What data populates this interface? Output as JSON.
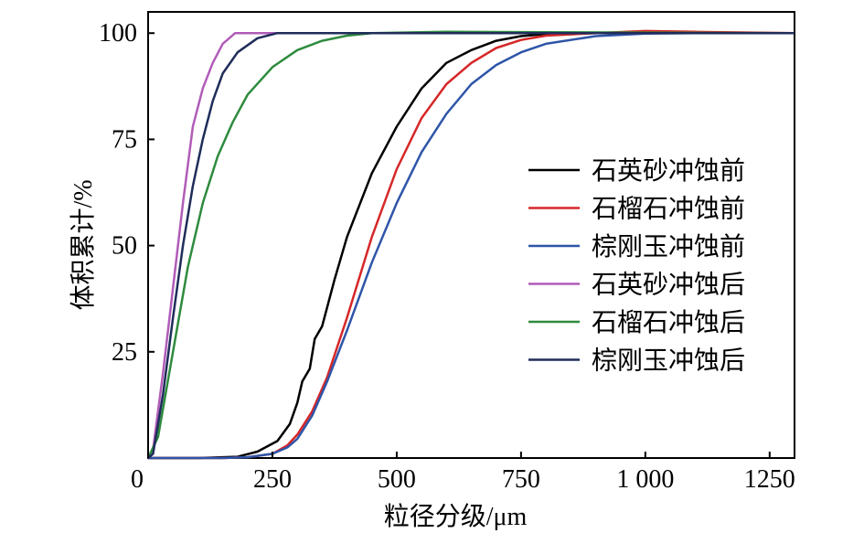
{
  "chart_data": {
    "type": "line",
    "xlabel": "粒径分级/μm",
    "ylabel": "体积累计/%",
    "xlim": [
      0,
      1300
    ],
    "ylim": [
      0,
      105
    ],
    "x_ticks": [
      {
        "value": 0,
        "label": "0"
      },
      {
        "value": 250,
        "label": "250"
      },
      {
        "value": 500,
        "label": "500"
      },
      {
        "value": 750,
        "label": "750"
      },
      {
        "value": 1000,
        "label": "1 000"
      },
      {
        "value": 1250,
        "label": "1250"
      }
    ],
    "y_ticks": [
      {
        "value": 25,
        "label": "25"
      },
      {
        "value": 50,
        "label": "50"
      },
      {
        "value": 75,
        "label": "75"
      },
      {
        "value": 100,
        "label": "100"
      }
    ],
    "legend_position": "right",
    "series": [
      {
        "name": "石英砂冲蚀前",
        "color": "#000000",
        "points": [
          [
            0,
            0
          ],
          [
            100,
            0
          ],
          [
            180,
            0.3
          ],
          [
            220,
            1.5
          ],
          [
            260,
            4
          ],
          [
            285,
            8
          ],
          [
            300,
            13
          ],
          [
            310,
            18
          ],
          [
            325,
            21
          ],
          [
            335,
            28
          ],
          [
            350,
            31
          ],
          [
            375,
            42
          ],
          [
            400,
            52
          ],
          [
            450,
            67
          ],
          [
            500,
            78
          ],
          [
            550,
            87
          ],
          [
            600,
            93
          ],
          [
            650,
            96
          ],
          [
            700,
            98.2
          ],
          [
            750,
            99.3
          ],
          [
            800,
            99.8
          ],
          [
            900,
            100
          ],
          [
            1000,
            100
          ],
          [
            1300,
            100
          ]
        ]
      },
      {
        "name": "石榴石冲蚀前",
        "color": "#d62728",
        "points": [
          [
            0,
            0
          ],
          [
            150,
            0
          ],
          [
            200,
            0.2
          ],
          [
            250,
            1
          ],
          [
            280,
            3
          ],
          [
            300,
            5.5
          ],
          [
            330,
            11
          ],
          [
            360,
            19
          ],
          [
            400,
            33
          ],
          [
            450,
            52
          ],
          [
            500,
            68
          ],
          [
            550,
            80
          ],
          [
            600,
            88
          ],
          [
            650,
            93
          ],
          [
            700,
            96.5
          ],
          [
            750,
            98.4
          ],
          [
            800,
            99.4
          ],
          [
            900,
            100
          ],
          [
            1000,
            100.5
          ],
          [
            1100,
            100.3
          ],
          [
            1300,
            100
          ]
        ]
      },
      {
        "name": "棕刚玉冲蚀前",
        "color": "#2e55a8",
        "points": [
          [
            0,
            0
          ],
          [
            150,
            0
          ],
          [
            200,
            0.2
          ],
          [
            250,
            1
          ],
          [
            280,
            2.5
          ],
          [
            300,
            4.5
          ],
          [
            330,
            10
          ],
          [
            360,
            18
          ],
          [
            400,
            30
          ],
          [
            450,
            46
          ],
          [
            500,
            60
          ],
          [
            550,
            72
          ],
          [
            600,
            81
          ],
          [
            650,
            88
          ],
          [
            700,
            92.5
          ],
          [
            750,
            95.5
          ],
          [
            800,
            97.5
          ],
          [
            900,
            99.3
          ],
          [
            1000,
            99.9
          ],
          [
            1100,
            100
          ],
          [
            1300,
            100
          ]
        ]
      },
      {
        "name": "石英砂冲蚀后",
        "color": "#b05cb8",
        "points": [
          [
            0,
            0
          ],
          [
            10,
            2
          ],
          [
            30,
            20
          ],
          [
            50,
            40
          ],
          [
            70,
            60
          ],
          [
            90,
            78
          ],
          [
            110,
            87
          ],
          [
            130,
            93
          ],
          [
            150,
            97.5
          ],
          [
            175,
            100
          ],
          [
            200,
            100
          ],
          [
            1300,
            100
          ]
        ]
      },
      {
        "name": "石榴石冲蚀后",
        "color": "#2e8b3e",
        "points": [
          [
            0,
            0
          ],
          [
            20,
            5
          ],
          [
            50,
            25
          ],
          [
            80,
            45
          ],
          [
            110,
            60
          ],
          [
            140,
            71
          ],
          [
            170,
            79
          ],
          [
            200,
            85.5
          ],
          [
            250,
            92
          ],
          [
            300,
            96
          ],
          [
            350,
            98.2
          ],
          [
            400,
            99.4
          ],
          [
            450,
            100
          ],
          [
            600,
            100.3
          ],
          [
            800,
            100.2
          ],
          [
            1300,
            100
          ]
        ]
      },
      {
        "name": "棕刚玉冲蚀后",
        "color": "#1f2d5a",
        "points": [
          [
            0,
            0
          ],
          [
            10,
            1
          ],
          [
            30,
            15
          ],
          [
            50,
            33
          ],
          [
            70,
            50
          ],
          [
            90,
            64
          ],
          [
            110,
            75
          ],
          [
            130,
            84
          ],
          [
            150,
            90.5
          ],
          [
            180,
            95.5
          ],
          [
            220,
            98.8
          ],
          [
            260,
            100
          ],
          [
            300,
            100
          ],
          [
            1300,
            100
          ]
        ]
      }
    ]
  }
}
